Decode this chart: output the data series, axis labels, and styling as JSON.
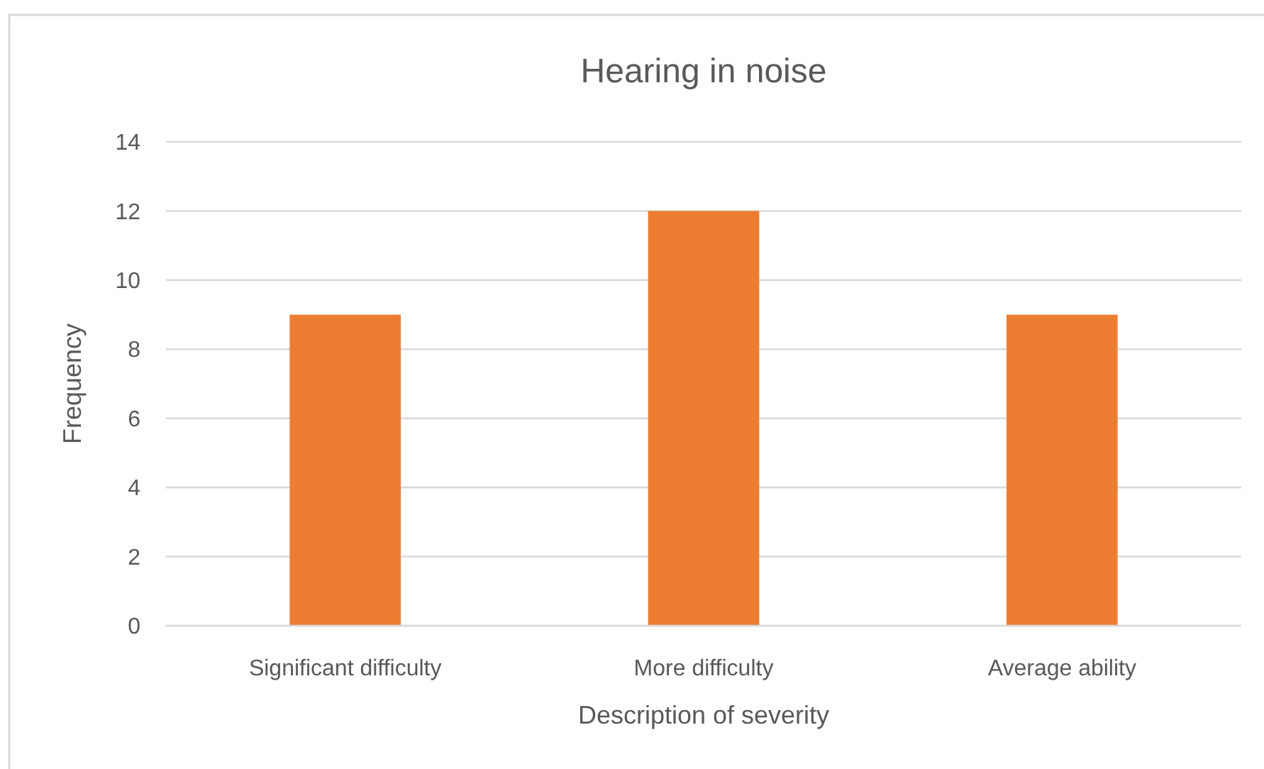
{
  "chart_data": {
    "type": "bar",
    "title": "Hearing in noise",
    "xlabel": "Description of severity",
    "ylabel": "Frequency",
    "categories": [
      "Significant difficulty",
      "More difficulty",
      "Average ability"
    ],
    "values": [
      9,
      12,
      9
    ],
    "color": "#ed7d31",
    "ylim": [
      0,
      14
    ],
    "yticks": [
      0,
      2,
      4,
      6,
      8,
      10,
      12,
      14
    ],
    "grid": "y"
  }
}
